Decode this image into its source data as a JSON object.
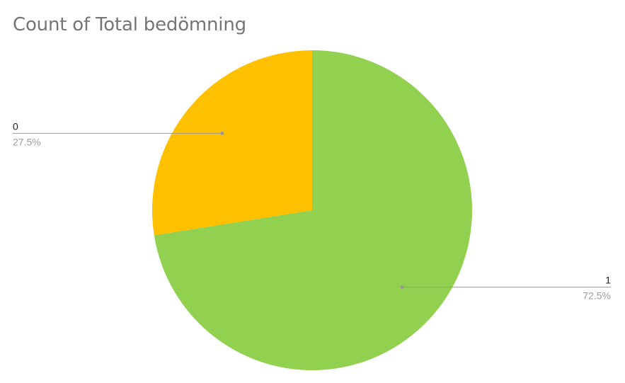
{
  "chart_data": {
    "type": "pie",
    "title": "Count of Total bedömning",
    "slices": [
      {
        "label": "1",
        "percent_label": "72.5%",
        "value": 72.5,
        "color": "#92d050"
      },
      {
        "label": "0",
        "percent_label": "27.5%",
        "value": 27.5,
        "color": "#ffc000"
      }
    ],
    "label_color": "#222222",
    "percent_color": "#9e9e9e",
    "leader_color": "#999999",
    "title_color": "#757575"
  }
}
